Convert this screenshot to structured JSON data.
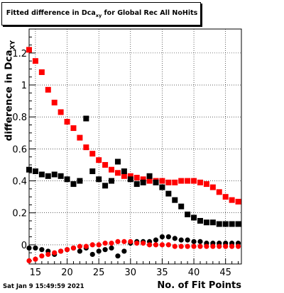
{
  "title": {
    "prefix": "Fitted difference in Dca",
    "sub": "xy",
    "suffix": " for Global Rec All NoHits"
  },
  "ylabel": {
    "prefix": "difference in Dca",
    "sub": "XY"
  },
  "xlabel": "No. of Fit Points",
  "timestamp": "Sat Jan  9 15:49:59 2021",
  "colors": {
    "series_a": "#ff0000",
    "series_b": "#000000"
  },
  "chart_data": {
    "type": "scatter",
    "title": "Fitted difference in Dca_xy for Global Rec All NoHits",
    "xlabel": "No. of Fit Points",
    "ylabel": "difference in Dca_XY",
    "xlim": [
      14,
      47.5
    ],
    "ylim": [
      -0.12,
      1.35
    ],
    "xticks": [
      15,
      20,
      25,
      30,
      35,
      40,
      45
    ],
    "yticks": [
      0,
      0.2,
      0.4,
      0.6,
      0.8,
      1,
      1.2
    ],
    "yticklabels": [
      "0",
      "0.2",
      "0.4",
      "0.6",
      "0.8",
      "1",
      "1.2"
    ],
    "grid": true,
    "series": [
      {
        "color": "#ff0000",
        "role": "upper",
        "x": [
          14,
          15,
          16,
          17,
          18,
          19,
          20,
          21,
          22,
          23,
          24,
          25,
          26,
          27,
          28,
          29,
          30,
          31,
          32,
          33,
          34,
          35,
          36,
          37,
          38,
          39,
          40,
          41,
          42,
          43,
          44,
          45,
          46,
          47
        ],
        "y": [
          1.22,
          1.15,
          1.08,
          0.97,
          0.89,
          0.83,
          0.77,
          0.73,
          0.67,
          0.61,
          0.57,
          0.53,
          0.5,
          0.47,
          0.45,
          0.43,
          0.43,
          0.42,
          0.41,
          0.4,
          0.4,
          0.4,
          0.39,
          0.39,
          0.4,
          0.4,
          0.4,
          0.39,
          0.38,
          0.36,
          0.33,
          0.3,
          0.28,
          0.27
        ]
      },
      {
        "color": "#000000",
        "role": "upper",
        "x": [
          14,
          15,
          16,
          17,
          18,
          19,
          20,
          21,
          22,
          23,
          24,
          25,
          26,
          27,
          28,
          29,
          30,
          31,
          32,
          33,
          34,
          35,
          36,
          37,
          38,
          39,
          40,
          41,
          42,
          43,
          44,
          45,
          46,
          47
        ],
        "y": [
          0.47,
          0.46,
          0.44,
          0.43,
          0.44,
          0.43,
          0.41,
          0.38,
          0.4,
          0.79,
          0.46,
          0.41,
          0.37,
          0.4,
          0.52,
          0.46,
          0.41,
          0.38,
          0.39,
          0.43,
          0.39,
          0.36,
          0.32,
          0.28,
          0.24,
          0.19,
          0.17,
          0.15,
          0.14,
          0.14,
          0.13,
          0.13,
          0.13,
          0.13
        ]
      },
      {
        "color": "#000000",
        "role": "lower",
        "x": [
          14,
          15,
          16,
          17,
          18,
          19,
          20,
          21,
          22,
          23,
          24,
          25,
          26,
          27,
          28,
          29,
          30,
          31,
          32,
          33,
          34,
          35,
          36,
          37,
          38,
          39,
          40,
          41,
          42,
          43,
          44,
          45,
          46,
          47
        ],
        "y": [
          -0.02,
          -0.02,
          -0.03,
          -0.04,
          -0.06,
          -0.04,
          -0.03,
          -0.02,
          -0.04,
          -0.02,
          -0.06,
          -0.04,
          -0.03,
          -0.02,
          -0.07,
          -0.04,
          0.01,
          0.02,
          0.02,
          0.02,
          0.03,
          0.05,
          0.05,
          0.04,
          0.03,
          0.03,
          0.02,
          0.02,
          0.01,
          0.01,
          0.01,
          0.01,
          0.01,
          0.01
        ]
      },
      {
        "color": "#ff0000",
        "role": "lower",
        "x": [
          14,
          15,
          16,
          17,
          18,
          19,
          20,
          21,
          22,
          23,
          24,
          25,
          26,
          27,
          28,
          29,
          30,
          31,
          32,
          33,
          34,
          35,
          36,
          37,
          38,
          39,
          40,
          41,
          42,
          43,
          44,
          45,
          46,
          47
        ],
        "y": [
          -0.1,
          -0.09,
          -0.07,
          -0.06,
          -0.05,
          -0.04,
          -0.03,
          -0.02,
          -0.01,
          -0.01,
          0.0,
          0.0,
          0.01,
          0.01,
          0.02,
          0.02,
          0.02,
          0.01,
          0.01,
          0.0,
          0.0,
          0.0,
          0.0,
          -0.01,
          -0.01,
          -0.01,
          -0.01,
          -0.01,
          -0.01,
          -0.01,
          -0.01,
          -0.01,
          -0.01,
          -0.01
        ]
      }
    ]
  }
}
